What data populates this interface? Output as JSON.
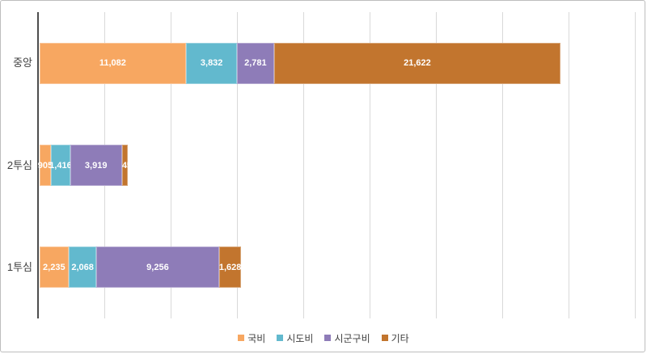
{
  "chart_data": {
    "type": "bar",
    "orientation": "horizontal",
    "stacked": true,
    "categories": [
      "중앙",
      "2투심",
      "1투심"
    ],
    "series": [
      {
        "name": "국비",
        "color": "#F7A761",
        "values": [
          11082,
          905,
          2235
        ]
      },
      {
        "name": "시도비",
        "color": "#62B9CE",
        "values": [
          3832,
          1416,
          2068
        ]
      },
      {
        "name": "시군구비",
        "color": "#8E7CB8",
        "values": [
          2781,
          3919,
          9256
        ]
      },
      {
        "name": "기타",
        "color": "#C2752E",
        "values": [
          21622,
          457,
          1628
        ]
      }
    ],
    "data_labels": [
      [
        "11,082",
        "3,832",
        "2,781",
        "21,622"
      ],
      [
        "905",
        "1,416",
        "3,919",
        "457"
      ],
      [
        "2,235",
        "2,068",
        "9,256",
        "1,628"
      ]
    ],
    "xlim": [
      0,
      45000
    ],
    "x_gridline_interval": 5000,
    "gridlines": true,
    "legend_position": "bottom",
    "colors": {
      "axis": "#4D4D4D",
      "gridline": "#D9D9D9",
      "data_label": "#FFFFFF",
      "category_label": "#404040",
      "frame_border": "#BDBDBD"
    }
  }
}
